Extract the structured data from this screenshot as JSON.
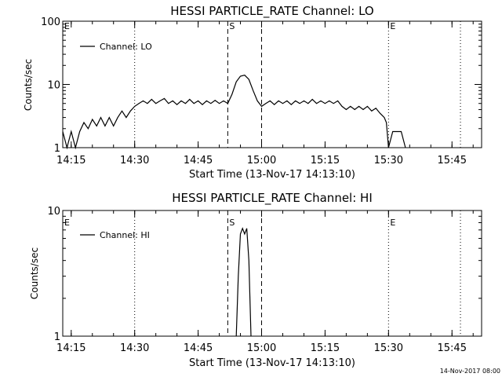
{
  "footer": {
    "timestamp": "14-Nov-2017 08:00"
  },
  "chart_data": [
    {
      "type": "line",
      "title": "HESSI PARTICLE_RATE Channel: LO",
      "xlabel": "Start Time (13-Nov-17 14:13:10)",
      "ylabel": "Counts/sec",
      "y_scale": "log",
      "ylim": [
        1,
        100
      ],
      "y_ticks": [
        {
          "value": 1,
          "label": "1"
        },
        {
          "value": 10,
          "label": "10"
        },
        {
          "value": 100,
          "label": "100"
        }
      ],
      "xlim": [
        "14:13",
        "15:52"
      ],
      "x_ticks": [
        "14:15",
        "14:30",
        "14:45",
        "15:00",
        "15:15",
        "15:30",
        "15:45"
      ],
      "legend": {
        "placement": "top-left",
        "entries": [
          "Channel: LO"
        ]
      },
      "markers": [
        {
          "label": "E",
          "time": "14:13",
          "style": "dotted"
        },
        {
          "label": "",
          "time": "14:30",
          "style": "dotted"
        },
        {
          "label": "S",
          "time": "14:52",
          "style": "dashed"
        },
        {
          "label": "",
          "time": "15:00",
          "style": "dashed"
        },
        {
          "label": "E",
          "time": "15:30",
          "style": "dotted"
        },
        {
          "label": "",
          "time": "15:47",
          "style": "dotted"
        }
      ],
      "series": [
        {
          "values": [
            [
              "14:13:00",
              1.8
            ],
            [
              "14:14:00",
              1.0
            ],
            [
              "14:15:00",
              1.8
            ],
            [
              "14:16:00",
              1.0
            ],
            [
              "14:17:00",
              1.8
            ],
            [
              "14:18:00",
              2.5
            ],
            [
              "14:19:00",
              2.0
            ],
            [
              "14:20:00",
              2.8
            ],
            [
              "14:21:00",
              2.2
            ],
            [
              "14:22:00",
              3.0
            ],
            [
              "14:23:00",
              2.2
            ],
            [
              "14:24:00",
              3.0
            ],
            [
              "14:25:00",
              2.2
            ],
            [
              "14:26:00",
              3.0
            ],
            [
              "14:27:00",
              3.8
            ],
            [
              "14:28:00",
              3.0
            ],
            [
              "14:29:00",
              3.8
            ],
            [
              "14:30:00",
              4.5
            ],
            [
              "14:31:00",
              5.0
            ],
            [
              "14:32:00",
              5.5
            ],
            [
              "14:33:00",
              5.0
            ],
            [
              "14:34:00",
              5.8
            ],
            [
              "14:35:00",
              5.0
            ],
            [
              "14:36:00",
              5.5
            ],
            [
              "14:37:00",
              6.0
            ],
            [
              "14:38:00",
              5.0
            ],
            [
              "14:39:00",
              5.5
            ],
            [
              "14:40:00",
              4.8
            ],
            [
              "14:41:00",
              5.5
            ],
            [
              "14:42:00",
              5.0
            ],
            [
              "14:43:00",
              5.8
            ],
            [
              "14:44:00",
              5.0
            ],
            [
              "14:45:00",
              5.5
            ],
            [
              "14:46:00",
              4.8
            ],
            [
              "14:47:00",
              5.5
            ],
            [
              "14:48:00",
              5.0
            ],
            [
              "14:49:00",
              5.6
            ],
            [
              "14:50:00",
              5.0
            ],
            [
              "14:51:00",
              5.5
            ],
            [
              "14:52:00",
              5.0
            ],
            [
              "14:53:00",
              7.0
            ],
            [
              "14:54:00",
              11.0
            ],
            [
              "14:55:00",
              13.5
            ],
            [
              "14:56:00",
              14.0
            ],
            [
              "14:57:00",
              12.0
            ],
            [
              "14:58:00",
              8.0
            ],
            [
              "14:59:00",
              5.5
            ],
            [
              "15:00:00",
              4.5
            ],
            [
              "15:01:00",
              5.0
            ],
            [
              "15:02:00",
              5.5
            ],
            [
              "15:03:00",
              4.8
            ],
            [
              "15:04:00",
              5.5
            ],
            [
              "15:05:00",
              5.0
            ],
            [
              "15:06:00",
              5.5
            ],
            [
              "15:07:00",
              4.8
            ],
            [
              "15:08:00",
              5.5
            ],
            [
              "15:09:00",
              5.0
            ],
            [
              "15:10:00",
              5.5
            ],
            [
              "15:11:00",
              5.0
            ],
            [
              "15:12:00",
              5.8
            ],
            [
              "15:13:00",
              5.0
            ],
            [
              "15:14:00",
              5.5
            ],
            [
              "15:15:00",
              5.0
            ],
            [
              "15:16:00",
              5.5
            ],
            [
              "15:17:00",
              5.0
            ],
            [
              "15:18:00",
              5.5
            ],
            [
              "15:19:00",
              4.5
            ],
            [
              "15:20:00",
              4.0
            ],
            [
              "15:21:00",
              4.5
            ],
            [
              "15:22:00",
              4.0
            ],
            [
              "15:23:00",
              4.5
            ],
            [
              "15:24:00",
              4.0
            ],
            [
              "15:25:00",
              4.5
            ],
            [
              "15:26:00",
              3.8
            ],
            [
              "15:27:00",
              4.2
            ],
            [
              "15:28:00",
              3.5
            ],
            [
              "15:29:00",
              3.0
            ],
            [
              "15:29:30",
              2.5
            ],
            [
              "15:30:00",
              1.0
            ],
            [
              "15:31:00",
              1.8
            ],
            [
              "15:33:00",
              1.8
            ],
            [
              "15:34:00",
              1.0
            ]
          ]
        }
      ]
    },
    {
      "type": "line",
      "title": "HESSI PARTICLE_RATE Channel: HI",
      "xlabel": "Start Time (13-Nov-17 14:13:10)",
      "ylabel": "Counts/sec",
      "y_scale": "log",
      "ylim": [
        1,
        10
      ],
      "y_ticks": [
        {
          "value": 1,
          "label": "1"
        },
        {
          "value": 10,
          "label": "10"
        }
      ],
      "xlim": [
        "14:13",
        "15:52"
      ],
      "x_ticks": [
        "14:15",
        "14:30",
        "14:45",
        "15:00",
        "15:15",
        "15:30",
        "15:45"
      ],
      "legend": {
        "placement": "top-left",
        "entries": [
          "Channel: HI"
        ]
      },
      "markers": [
        {
          "label": "E",
          "time": "14:13",
          "style": "dotted"
        },
        {
          "label": "",
          "time": "14:30",
          "style": "dotted"
        },
        {
          "label": "S",
          "time": "14:52",
          "style": "dashed"
        },
        {
          "label": "",
          "time": "15:00",
          "style": "dashed"
        },
        {
          "label": "E",
          "time": "15:30",
          "style": "dotted"
        },
        {
          "label": "",
          "time": "15:47",
          "style": "dotted"
        }
      ],
      "series": [
        {
          "values": [
            [
              "14:54:00",
              1.0
            ],
            [
              "14:54:30",
              3.0
            ],
            [
              "14:55:00",
              6.5
            ],
            [
              "14:55:30",
              7.2
            ],
            [
              "14:56:00",
              6.5
            ],
            [
              "14:56:30",
              7.2
            ],
            [
              "14:57:00",
              4.0
            ],
            [
              "14:57:30",
              1.0
            ]
          ]
        }
      ]
    }
  ]
}
